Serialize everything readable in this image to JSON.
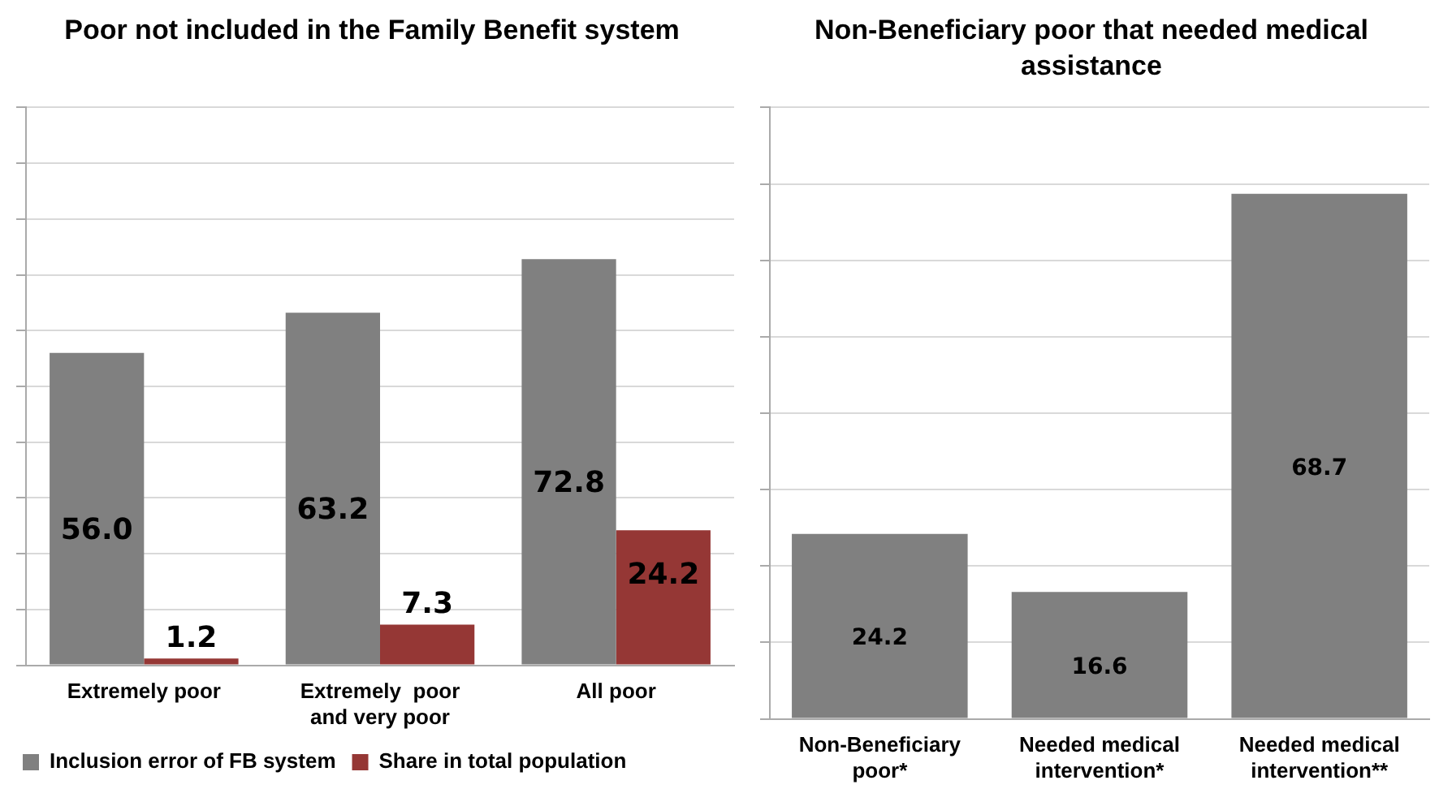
{
  "chart_data": [
    {
      "type": "bar",
      "title": "Poor not included in the Family Benefit system",
      "categories": [
        "Extremely poor",
        "Extremely  poor and very poor",
        "All poor"
      ],
      "series": [
        {
          "name": "Inclusion error of FB system",
          "color": "#808080",
          "values": [
            56.0,
            63.2,
            72.8
          ],
          "value_labels": [
            "56.0",
            "63.2",
            "72.8"
          ]
        },
        {
          "name": "Share in total population",
          "color": "#953735",
          "values": [
            1.2,
            7.3,
            24.2
          ],
          "value_labels": [
            "1.2",
            "7.3",
            "24.2"
          ]
        }
      ],
      "ylim": [
        0,
        100
      ],
      "yticks": [
        {
          "value": 0,
          "label": null
        },
        {
          "value": 10,
          "label": null
        },
        {
          "value": 20,
          "label": null
        },
        {
          "value": 30,
          "label": null
        },
        {
          "value": 40,
          "label": null
        },
        {
          "value": 50,
          "label": null
        },
        {
          "value": 60,
          "label": null
        },
        {
          "value": 70,
          "label": null
        },
        {
          "value": 80,
          "label": null
        },
        {
          "value": 90,
          "label": null
        },
        {
          "value": 100,
          "label": null
        }
      ],
      "tick_labels": "x",
      "grid": "y",
      "legend": "bottom"
    },
    {
      "type": "bar",
      "title": "Non-Beneficiary poor that needed medical assistance",
      "categories": [
        "Non-Beneficiary poor*",
        "Needed medical intervention*",
        "Needed medical intervention**"
      ],
      "series": [
        {
          "color": "#808080",
          "values": [
            24.2,
            16.6,
            68.7
          ]
        }
      ],
      "ylim": [
        0,
        80
      ],
      "yticks": [
        {
          "value": 0,
          "label": null
        },
        {
          "value": 10,
          "label": null
        },
        {
          "value": 20,
          "label": null
        },
        {
          "value": 30,
          "label": null
        },
        {
          "value": 40,
          "label": null
        },
        {
          "value": 50,
          "label": null
        },
        {
          "value": 60,
          "label": null
        },
        {
          "value": 70,
          "label": null
        },
        {
          "value": 80,
          "label": null
        }
      ],
      "tick_labels": "x",
      "grid": "y",
      "data_labels": true
    }
  ]
}
